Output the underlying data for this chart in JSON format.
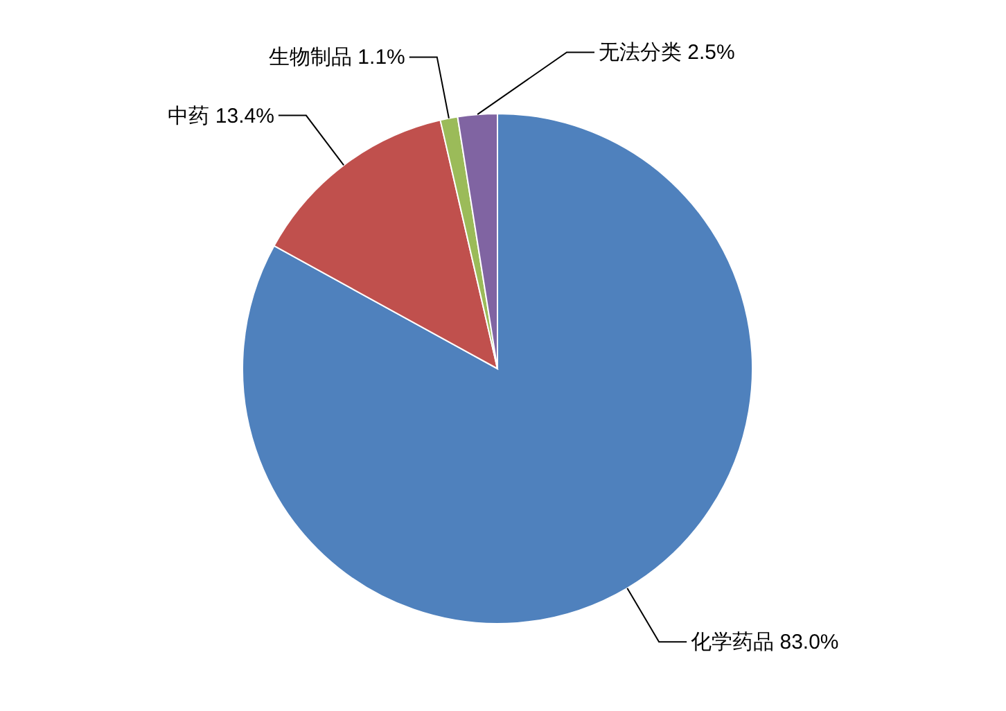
{
  "chart_data": {
    "type": "pie",
    "categories": [
      "化学药品",
      "中药",
      "生物制品",
      "无法分类"
    ],
    "values": [
      83.0,
      13.4,
      1.1,
      2.5
    ],
    "colors": [
      "#4f81bd",
      "#c0504d",
      "#9bbb59",
      "#8064a2"
    ],
    "value_labels": [
      "83.0%",
      "13.4%",
      "1.1%",
      "2.5%"
    ]
  }
}
